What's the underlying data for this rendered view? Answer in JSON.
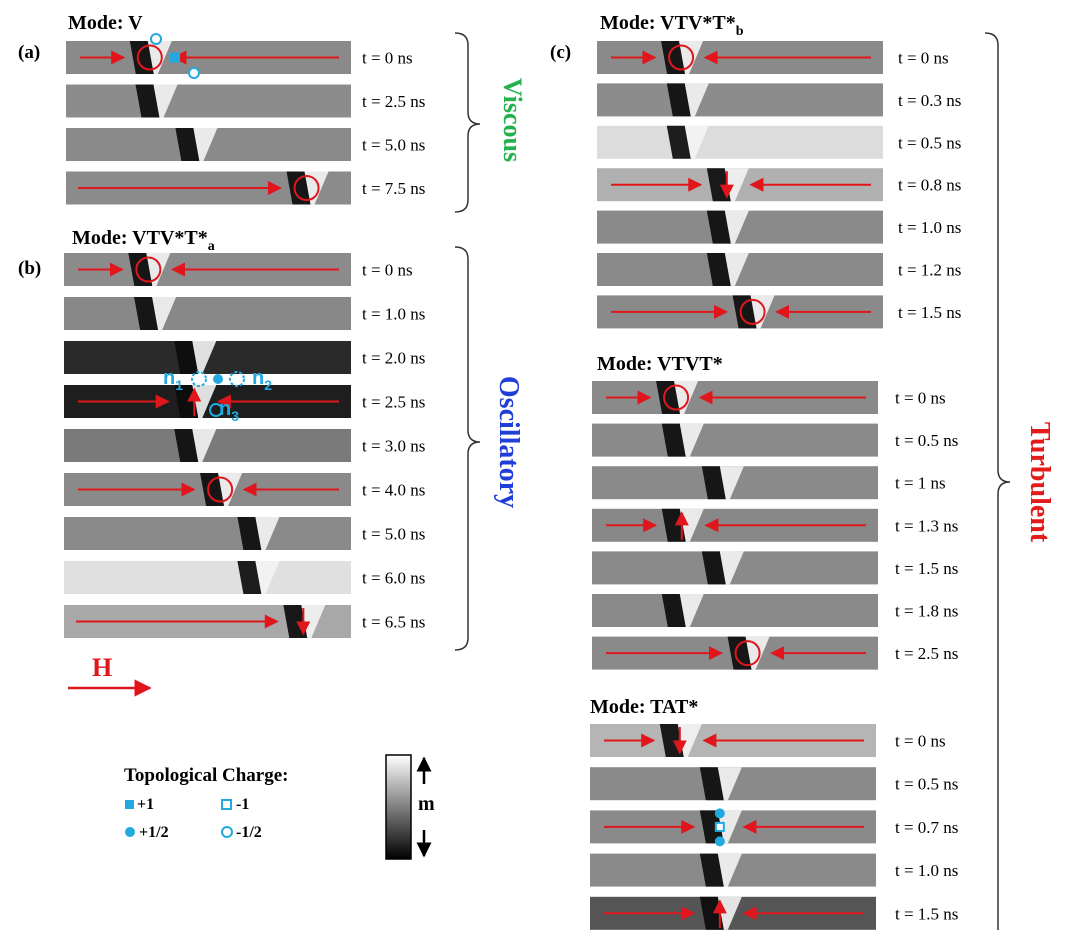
{
  "panels": [
    {
      "label": "(a)",
      "modes": [
        {
          "title": "Mode: V",
          "subscript": "",
          "frames": [
            {
              "time": "t = 0 ns",
              "bg": "#8a8a8a",
              "wall": "vortex-left",
              "marks": [
                "arrow-in",
                "circ",
                "halfm",
                "full",
                "halfm2"
              ]
            },
            {
              "time": "t = 2.5 ns",
              "bg": "#8c8c8c",
              "wall": "tri-left"
            },
            {
              "time": "t = 5.0 ns",
              "bg": "#8a8a8a",
              "wall": "tri-mid"
            },
            {
              "time": "t = 7.5 ns",
              "bg": "#8b8b8b",
              "wall": "vortex-right",
              "marks": [
                "arrow-in-right",
                "circ"
              ]
            }
          ]
        }
      ],
      "regime": "Viscous",
      "regime_color": "#22b14c"
    },
    {
      "label": "(b)",
      "modes": [
        {
          "title": "Mode: VTV*T*",
          "subscript": "a",
          "frames": [
            {
              "time": "t = 0 ns",
              "bg": "#8b8b8b",
              "wall": "vortex-left",
              "marks": [
                "arrow-in",
                "circ"
              ]
            },
            {
              "time": "t = 1.0 ns",
              "bg": "#888888",
              "wall": "tri-left"
            },
            {
              "time": "t = 2.0 ns",
              "bg": "#2a2a2a",
              "wall": "tri-mid"
            },
            {
              "time": "t = 2.5 ns",
              "bg": "#1e1e1e",
              "wall": "tri-mid",
              "marks": [
                "arrow-in",
                "up"
              ]
            },
            {
              "time": "t = 3.0 ns",
              "bg": "#7a7a7a",
              "wall": "tri-mid"
            },
            {
              "time": "t = 4.0 ns",
              "bg": "#8a8a8a",
              "wall": "vortex-mid",
              "marks": [
                "arrow-in",
                "circ"
              ]
            },
            {
              "time": "t = 5.0 ns",
              "bg": "#8a8a8a",
              "wall": "tri-right"
            },
            {
              "time": "t = 6.0 ns",
              "bg": "#e0e0e0",
              "wall": "tri-right"
            },
            {
              "time": "t = 6.5 ns",
              "bg": "#a8a8a8",
              "wall": "tri-far",
              "marks": [
                "arrow-in-right",
                "down"
              ]
            }
          ]
        }
      ],
      "regime": "Oscillatory",
      "regime_color": "#1f3fd8",
      "defect_labels": [
        "n",
        "1",
        "n",
        "2",
        "n",
        "3"
      ]
    },
    {
      "label": "(c)",
      "modes": [
        {
          "title": "Mode: VTV*T*",
          "subscript": "b",
          "frames": [
            {
              "time": "t = 0 ns",
              "bg": "#8a8a8a",
              "wall": "vortex-left",
              "marks": [
                "arrow-in",
                "circ"
              ]
            },
            {
              "time": "t = 0.3 ns",
              "bg": "#8c8c8c",
              "wall": "tri-left"
            },
            {
              "time": "t = 0.5 ns",
              "bg": "#dcdcdc",
              "wall": "tri-left"
            },
            {
              "time": "t = 0.8 ns",
              "bg": "#b0b0b0",
              "wall": "tri-mid",
              "marks": [
                "arrow-in",
                "down"
              ]
            },
            {
              "time": "t = 1.0 ns",
              "bg": "#8a8a8a",
              "wall": "tri-mid"
            },
            {
              "time": "t = 1.2 ns",
              "bg": "#8a8a8a",
              "wall": "tri-mid"
            },
            {
              "time": "t = 1.5 ns",
              "bg": "#8a8a8a",
              "wall": "vortex-mid",
              "marks": [
                "arrow-in",
                "circ"
              ]
            }
          ]
        },
        {
          "title": "Mode: VTVT*",
          "subscript": "",
          "frames": [
            {
              "time": "t = 0 ns",
              "bg": "#8a8a8a",
              "wall": "vortex-left",
              "marks": [
                "arrow-in",
                "circ"
              ]
            },
            {
              "time": "t = 0.5 ns",
              "bg": "#8a8a8a",
              "wall": "tri-left"
            },
            {
              "time": "t = 1 ns",
              "bg": "#8a8a8a",
              "wall": "tri-mid"
            },
            {
              "time": "t = 1.3 ns",
              "bg": "#888888",
              "wall": "tri-left",
              "marks": [
                "arrow-in",
                "up"
              ]
            },
            {
              "time": "t = 1.5 ns",
              "bg": "#8a8a8a",
              "wall": "tri-mid"
            },
            {
              "time": "t = 1.8 ns",
              "bg": "#8a8a8a",
              "wall": "tri-left"
            },
            {
              "time": "t = 2.5 ns",
              "bg": "#8a8a8a",
              "wall": "vortex-mid",
              "marks": [
                "arrow-in",
                "circ"
              ]
            }
          ]
        },
        {
          "title": "Mode: TAT*",
          "subscript": "",
          "frames": [
            {
              "time": "t = 0 ns",
              "bg": "#b5b5b5",
              "wall": "tri-left",
              "marks": [
                "arrow-in",
                "down"
              ]
            },
            {
              "time": "t = 0.5 ns",
              "bg": "#8a8a8a",
              "wall": "tri-mid"
            },
            {
              "time": "t = 0.7 ns",
              "bg": "#8a8a8a",
              "wall": "tri-mid",
              "marks": [
                "arrow-in",
                "anti"
              ]
            },
            {
              "time": "t = 1.0 ns",
              "bg": "#8a8a8a",
              "wall": "tri-mid"
            },
            {
              "time": "t = 1.5 ns",
              "bg": "#555555",
              "wall": "tri-mid",
              "marks": [
                "arrow-in",
                "up"
              ]
            }
          ]
        }
      ],
      "regime": "Turbulent",
      "regime_color": "#e31b1b"
    }
  ],
  "field_label": "H",
  "legend": {
    "title": "Topological Charge:",
    "items": [
      "+1",
      "-1",
      "+1/2",
      "-1/2"
    ],
    "colorbar_label": "m"
  },
  "colors": {
    "arrow": "#e0161c",
    "defect": "#22aae0"
  }
}
